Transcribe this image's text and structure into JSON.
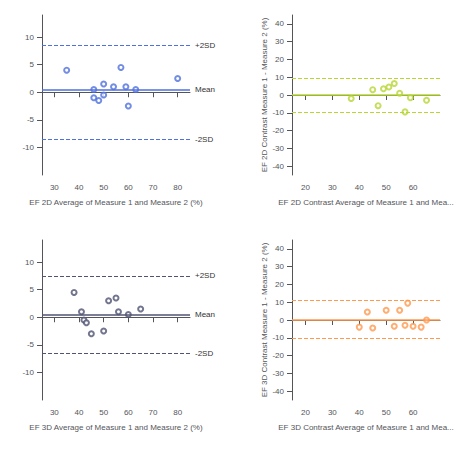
{
  "chart_data": [
    {
      "type": "scatter",
      "x": [
        35,
        46,
        46,
        48,
        50,
        50,
        54,
        57,
        59,
        60,
        63,
        80
      ],
      "values": [
        4.0,
        0.5,
        -1.0,
        -1.5,
        -0.5,
        1.5,
        1.0,
        4.5,
        1.0,
        -2.5,
        0.5,
        2.5
      ],
      "xlabel": "EF 2D Average of Measure 1 and Measure 2 (%)",
      "xlim": [
        25,
        85
      ],
      "ylim": [
        -15,
        14
      ],
      "xticks": [
        30,
        40,
        50,
        60,
        70,
        80
      ],
      "yticks": [
        -10,
        -5,
        0,
        5,
        10
      ],
      "hlines": [
        {
          "y": 0.5,
          "line_style": "solid",
          "label": "Mean"
        },
        {
          "y": 8.5,
          "line_style": "dashed",
          "label": "+2SD"
        },
        {
          "y": -8.5,
          "line_style": "dashed",
          "label": "-2SD"
        }
      ],
      "marker": "open_circle",
      "grid": false
    },
    {
      "type": "scatter",
      "x": [
        37,
        45,
        47,
        49,
        51,
        53,
        55,
        57,
        59,
        65
      ],
      "values": [
        -2.0,
        3.0,
        -6.0,
        3.5,
        4.5,
        6.5,
        1.0,
        -9.5,
        -1.5,
        -3.0
      ],
      "xlabel": "EF 2D Contrast Average of Measure 1 and Mea...",
      "ylabel": "EF 2D Contrast Measure 1 - Measure 2 (%)",
      "xlim": [
        15,
        70
      ],
      "ylim": [
        -45,
        45
      ],
      "xticks": [
        20,
        30,
        40,
        50,
        60
      ],
      "yticks": [
        -40,
        -30,
        -20,
        -10,
        0,
        10,
        20,
        30,
        40
      ],
      "hlines": [
        {
          "y": 0.0,
          "line_style": "solid"
        },
        {
          "y": 9.5,
          "line_style": "dashed"
        },
        {
          "y": -9.5,
          "line_style": "dashed"
        }
      ],
      "marker": "open_circle",
      "grid": false
    },
    {
      "type": "scatter",
      "x": [
        38,
        41,
        42,
        43,
        45,
        50,
        52,
        55,
        56,
        60,
        65
      ],
      "values": [
        4.5,
        1.0,
        -0.5,
        -1.0,
        -3.0,
        -2.5,
        3.0,
        3.5,
        1.0,
        0.5,
        1.5
      ],
      "xlabel": "EF 3D Average of Measure 1 and Measure 2 (%)",
      "xlim": [
        25,
        85
      ],
      "ylim": [
        -15,
        14
      ],
      "xticks": [
        30,
        40,
        50,
        60,
        70,
        80
      ],
      "yticks": [
        -10,
        -5,
        0,
        5,
        10
      ],
      "hlines": [
        {
          "y": 0.5,
          "line_style": "solid",
          "label": "Mean"
        },
        {
          "y": 7.5,
          "line_style": "dashed",
          "label": "+2SD"
        },
        {
          "y": -6.5,
          "line_style": "dashed",
          "label": "-2SD"
        }
      ],
      "marker": "open_circle",
      "grid": false
    },
    {
      "type": "scatter",
      "x": [
        40,
        43,
        45,
        50,
        53,
        55,
        57,
        58,
        60,
        63,
        65
      ],
      "values": [
        -4.0,
        4.5,
        -4.5,
        5.5,
        -3.5,
        5.5,
        -3.0,
        9.5,
        -3.5,
        -4.0,
        0.0
      ],
      "xlabel": "EF 3D Contrast Average of Measure 1 and Mea...",
      "ylabel": "EF 3D Contrast Measure 1 - Measure 2 (%)",
      "xlim": [
        15,
        70
      ],
      "ylim": [
        -45,
        45
      ],
      "xticks": [
        20,
        30,
        40,
        50,
        60
      ],
      "yticks": [
        -40,
        -30,
        -20,
        -10,
        0,
        10,
        20,
        30,
        40
      ],
      "hlines": [
        {
          "y": 0.0,
          "line_style": "solid"
        },
        {
          "y": 11.0,
          "line_style": "dashed"
        },
        {
          "y": -10.0,
          "line_style": "dashed"
        }
      ],
      "marker": "open_circle",
      "grid": false
    }
  ]
}
